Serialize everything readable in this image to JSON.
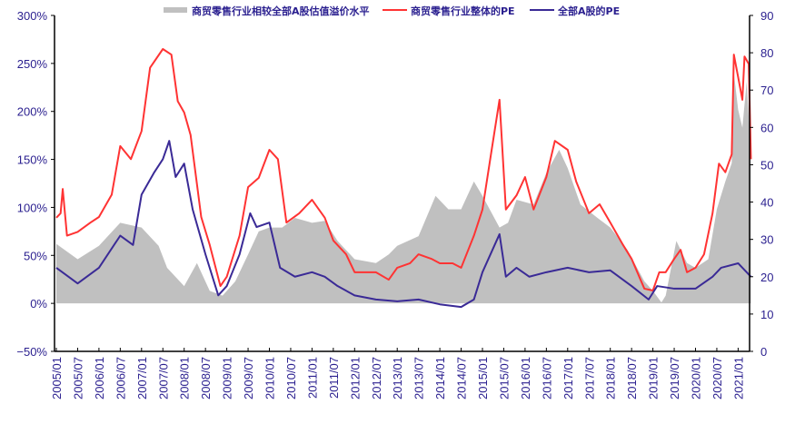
{
  "chart_data": {
    "type": "line",
    "title": "",
    "legend_position": "top",
    "colors": {
      "premium": "#c0c0c0",
      "sector_pe": "#ff3333",
      "market_pe": "#3a2a96",
      "text": "#2a1f8f"
    },
    "left_axis": {
      "ylim": [
        -50,
        300
      ],
      "ticks": [
        -50,
        0,
        50,
        100,
        150,
        200,
        250,
        300
      ],
      "tick_labels": [
        "−50%",
        "0%",
        "50%",
        "100%",
        "150%",
        "200%",
        "250%",
        "300%"
      ]
    },
    "right_axis": {
      "ylim": [
        0,
        90
      ],
      "ticks": [
        0,
        10,
        20,
        30,
        40,
        50,
        60,
        70,
        80,
        90
      ],
      "tick_labels": [
        "0",
        "10",
        "20",
        "30",
        "40",
        "50",
        "60",
        "70",
        "80",
        "90"
      ]
    },
    "x_range": [
      2004.97,
      2021.33
    ],
    "x_tick_labels": [
      "2005/01",
      "2005/07",
      "2006/01",
      "2006/07",
      "2007/01",
      "2007/07",
      "2008/01",
      "2008/07",
      "2009/01",
      "2009/07",
      "2010/01",
      "2010/07",
      "2011/01",
      "2011/07",
      "2012/01",
      "2012/07",
      "2013/01",
      "2013/07",
      "2014/01",
      "2014/07",
      "2015/01",
      "2015/07",
      "2016/01",
      "2016/07",
      "2017/01",
      "2017/07",
      "2018/01",
      "2018/07",
      "2019/01",
      "2019/07",
      "2020/01",
      "2020/07",
      "2021/01"
    ],
    "series": [
      {
        "name": "商贸零售行业相较全部A股估值溢价水平",
        "type": "area",
        "axis": "left",
        "x": [
          2005.0,
          2005.5,
          2006.0,
          2006.5,
          2007.0,
          2007.4,
          2007.6,
          2008.0,
          2008.3,
          2008.6,
          2008.9,
          2009.2,
          2009.5,
          2009.75,
          2010.0,
          2010.3,
          2010.6,
          2011.0,
          2011.3,
          2011.6,
          2012.0,
          2012.5,
          2012.8,
          2013.0,
          2013.5,
          2013.9,
          2014.2,
          2014.5,
          2014.8,
          2015.0,
          2015.4,
          2015.6,
          2015.8,
          2016.2,
          2016.5,
          2016.8,
          2017.0,
          2017.3,
          2017.7,
          2018.0,
          2018.4,
          2018.8,
          2019.0,
          2019.2,
          2019.3,
          2019.55,
          2019.8,
          2020.0,
          2020.3,
          2020.5,
          2020.7,
          2020.85,
          2020.9,
          2021.0,
          2021.1,
          2021.2,
          2021.3
        ],
        "values": [
          62,
          46,
          60,
          84,
          79,
          60,
          37,
          18,
          42,
          13,
          8,
          23,
          51,
          75,
          79,
          79,
          89,
          84,
          86,
          65,
          46,
          42,
          51,
          60,
          70,
          112,
          98,
          98,
          127,
          112,
          79,
          84,
          108,
          103,
          136,
          160,
          141,
          103,
          89,
          79,
          56,
          23,
          13,
          1,
          8,
          65,
          42,
          37,
          46,
          98,
          127,
          146,
          240,
          202,
          183,
          231,
          155
        ]
      },
      {
        "name": "商贸零售行业整体的PE",
        "type": "line",
        "axis": "right",
        "x": [
          2005.0,
          2005.1,
          2005.15,
          2005.25,
          2005.5,
          2005.8,
          2006.0,
          2006.3,
          2006.5,
          2006.75,
          2007.0,
          2007.2,
          2007.5,
          2007.7,
          2007.85,
          2008.0,
          2008.15,
          2008.4,
          2008.6,
          2008.85,
          2009.0,
          2009.3,
          2009.5,
          2009.75,
          2010.0,
          2010.2,
          2010.4,
          2010.7,
          2011.0,
          2011.3,
          2011.5,
          2011.8,
          2012.0,
          2012.5,
          2012.8,
          2013.0,
          2013.3,
          2013.5,
          2013.8,
          2014.0,
          2014.3,
          2014.5,
          2014.8,
          2015.0,
          2015.2,
          2015.4,
          2015.55,
          2015.8,
          2016.0,
          2016.2,
          2016.5,
          2016.7,
          2017.0,
          2017.2,
          2017.5,
          2017.75,
          2018.0,
          2018.3,
          2018.5,
          2018.8,
          2019.0,
          2019.15,
          2019.3,
          2019.5,
          2019.65,
          2019.8,
          2020.0,
          2020.2,
          2020.4,
          2020.55,
          2020.7,
          2020.85,
          2020.9,
          2021.0,
          2021.1,
          2021.15,
          2021.25,
          2021.3
        ],
        "values": [
          35.8,
          37,
          43.5,
          31,
          32,
          34.5,
          36,
          42,
          55,
          51.5,
          59,
          76,
          81,
          79.5,
          67,
          64,
          58,
          36,
          28.5,
          17.5,
          20,
          31,
          44,
          46.5,
          54,
          51.5,
          34.5,
          37,
          40.6,
          35.8,
          29.7,
          26,
          21.2,
          21.2,
          19.2,
          22.4,
          23.6,
          26,
          24.8,
          23.6,
          23.6,
          22.4,
          31,
          38,
          52.8,
          67.4,
          38,
          41.8,
          46.7,
          38,
          46.7,
          56.4,
          54,
          45.5,
          37,
          39.4,
          34.5,
          28.5,
          24.8,
          16.8,
          16.3,
          21.2,
          21.2,
          24.8,
          27.2,
          21.2,
          22.4,
          26,
          37,
          50.3,
          48,
          52.8,
          79.5,
          73.5,
          67.4,
          79,
          77,
          51.5
        ]
      },
      {
        "name": "全部A股的PE",
        "type": "line",
        "axis": "right",
        "x": [
          2005.0,
          2005.5,
          2006.0,
          2006.5,
          2006.8,
          2007.0,
          2007.3,
          2007.5,
          2007.65,
          2007.8,
          2008.0,
          2008.2,
          2008.5,
          2008.8,
          2009.0,
          2009.3,
          2009.55,
          2009.7,
          2010.0,
          2010.25,
          2010.6,
          2011.0,
          2011.3,
          2011.6,
          2012.0,
          2012.5,
          2013.0,
          2013.5,
          2014.0,
          2014.5,
          2014.8,
          2015.0,
          2015.4,
          2015.55,
          2015.8,
          2016.1,
          2016.5,
          2017.0,
          2017.5,
          2018.0,
          2018.5,
          2018.9,
          2019.1,
          2019.5,
          2020.0,
          2020.4,
          2020.6,
          2021.0,
          2021.2,
          2021.3
        ],
        "values": [
          22.4,
          18.2,
          22.4,
          31,
          28.5,
          42,
          48,
          51.5,
          56.4,
          46.7,
          50.3,
          38,
          26,
          15,
          17.5,
          26,
          37,
          33.3,
          34.5,
          22.4,
          20,
          21.2,
          20,
          17.5,
          15,
          13.9,
          13.4,
          13.9,
          12.6,
          11.9,
          13.9,
          21.2,
          31.4,
          20,
          22.4,
          20,
          21.2,
          22.4,
          21.2,
          21.7,
          17.5,
          13.9,
          17.5,
          16.8,
          16.8,
          20,
          22.4,
          23.6,
          21.2,
          20
        ]
      }
    ]
  }
}
